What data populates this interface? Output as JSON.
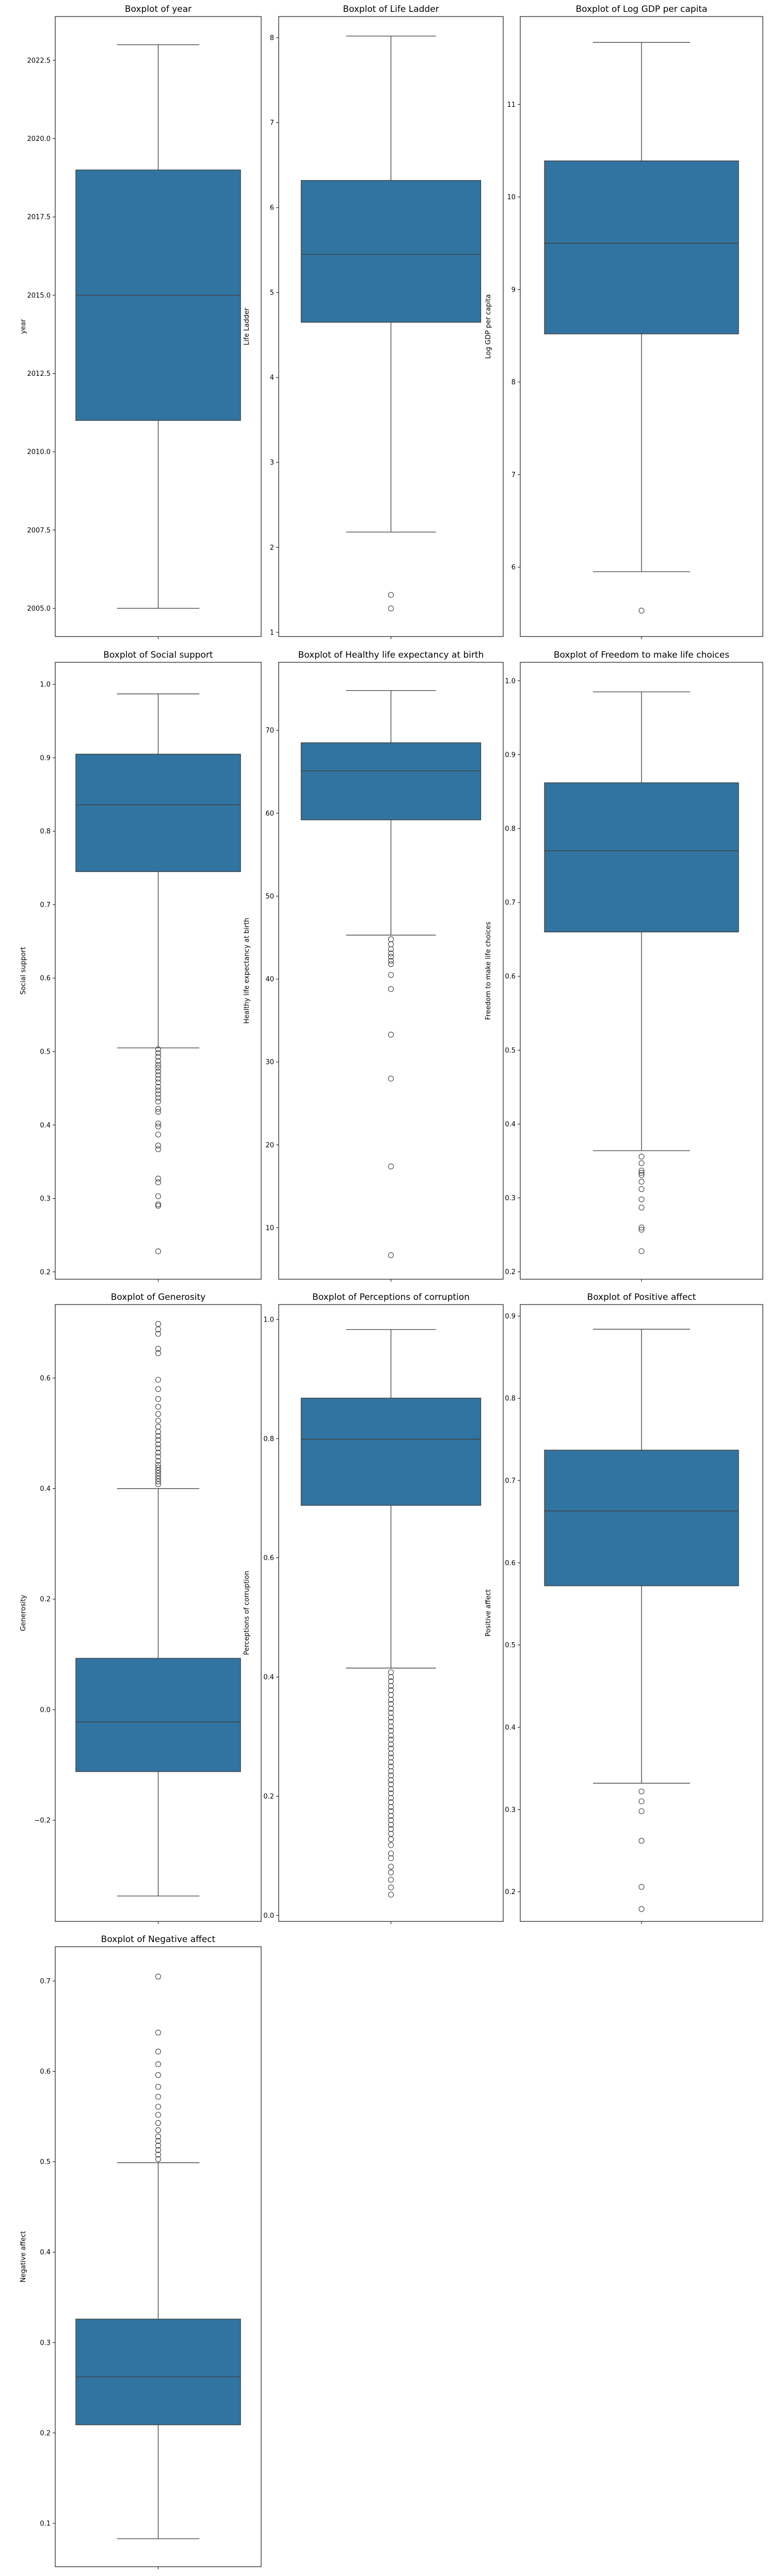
{
  "colors": {
    "box_fill": "#3274a1",
    "line": "#3d3d3d",
    "axis": "#000000",
    "outlier_edge": "#3d3d3d"
  },
  "chart_data": [
    {
      "type": "box",
      "title": "Boxplot of year",
      "ylabel": "year",
      "ylim": [
        2004.1,
        2023.9
      ],
      "ticks": [
        2005.0,
        2007.5,
        2010.0,
        2012.5,
        2015.0,
        2017.5,
        2020.0,
        2022.5
      ],
      "tick_labels": [
        "2005.0",
        "2007.5",
        "2010.0",
        "2012.5",
        "2015.0",
        "2017.5",
        "2020.0",
        "2022.5"
      ],
      "stats": {
        "whisker_low": 2005,
        "q1": 2011,
        "median": 2015,
        "q3": 2019,
        "whisker_high": 2023
      },
      "outliers": []
    },
    {
      "type": "box",
      "title": "Boxplot of Life Ladder",
      "ylabel": "Life Ladder",
      "ylim": [
        0.95,
        8.25
      ],
      "ticks": [
        1,
        2,
        3,
        4,
        5,
        6,
        7,
        8
      ],
      "tick_labels": [
        "1",
        "2",
        "3",
        "4",
        "5",
        "6",
        "7",
        "8"
      ],
      "stats": {
        "whisker_low": 2.18,
        "q1": 4.65,
        "median": 5.45,
        "q3": 6.32,
        "whisker_high": 8.02
      },
      "outliers": [
        1.44,
        1.28
      ]
    },
    {
      "type": "box",
      "title": "Boxplot of Log GDP per capita",
      "ylabel": "Log GDP per capita",
      "ylim": [
        5.25,
        11.95
      ],
      "ticks": [
        6,
        7,
        8,
        9,
        10,
        11
      ],
      "tick_labels": [
        "6",
        "7",
        "8",
        "9",
        "10",
        "11"
      ],
      "stats": {
        "whisker_low": 5.95,
        "q1": 8.52,
        "median": 9.5,
        "q3": 10.39,
        "whisker_high": 11.67
      },
      "outliers": [
        5.53
      ]
    },
    {
      "type": "box",
      "title": "Boxplot of Social support",
      "ylabel": "Social support",
      "ylim": [
        0.19,
        1.03
      ],
      "ticks": [
        0.2,
        0.3,
        0.4,
        0.5,
        0.6,
        0.7,
        0.8,
        0.9,
        1.0
      ],
      "tick_labels": [
        "0.2",
        "0.3",
        "0.4",
        "0.5",
        "0.6",
        "0.7",
        "0.8",
        "0.9",
        "1.0"
      ],
      "stats": {
        "whisker_low": 0.505,
        "q1": 0.745,
        "median": 0.836,
        "q3": 0.905,
        "whisker_high": 0.987
      },
      "outliers": [
        0.503,
        0.498,
        0.493,
        0.487,
        0.482,
        0.478,
        0.473,
        0.468,
        0.463,
        0.458,
        0.452,
        0.447,
        0.442,
        0.437,
        0.432,
        0.422,
        0.418,
        0.402,
        0.398,
        0.387,
        0.372,
        0.367,
        0.327,
        0.322,
        0.303,
        0.292,
        0.29,
        0.228
      ]
    },
    {
      "type": "box",
      "title": "Boxplot of Healthy life expectancy at birth",
      "ylabel": "Healthy life expectancy at birth",
      "ylim": [
        3.8,
        78.2
      ],
      "ticks": [
        10,
        20,
        30,
        40,
        50,
        60,
        70
      ],
      "tick_labels": [
        "10",
        "20",
        "30",
        "40",
        "50",
        "60",
        "70"
      ],
      "stats": {
        "whisker_low": 45.3,
        "q1": 59.2,
        "median": 65.1,
        "q3": 68.5,
        "whisker_high": 74.8
      },
      "outliers": [
        44.8,
        44.2,
        43.6,
        43.1,
        42.7,
        42.2,
        41.8,
        40.5,
        38.8,
        33.3,
        28.0,
        17.4,
        6.7
      ]
    },
    {
      "type": "box",
      "title": "Boxplot of Freedom to make life choices",
      "ylabel": "Freedom to make life choices",
      "ylim": [
        0.19,
        1.025
      ],
      "ticks": [
        0.2,
        0.3,
        0.4,
        0.5,
        0.6,
        0.7,
        0.8,
        0.9,
        1.0
      ],
      "tick_labels": [
        "0.2",
        "0.3",
        "0.4",
        "0.5",
        "0.6",
        "0.7",
        "0.8",
        "0.9",
        "1.0"
      ],
      "stats": {
        "whisker_low": 0.364,
        "q1": 0.66,
        "median": 0.77,
        "q3": 0.862,
        "whisker_high": 0.985
      },
      "outliers": [
        0.356,
        0.347,
        0.337,
        0.334,
        0.331,
        0.322,
        0.312,
        0.298,
        0.287,
        0.26,
        0.257,
        0.228
      ]
    },
    {
      "type": "box",
      "title": "Boxplot of Generosity",
      "ylabel": "Generosity",
      "ylim": [
        -0.383,
        0.733
      ],
      "ticks": [
        -0.2,
        0.0,
        0.2,
        0.4,
        0.6
      ],
      "tick_labels": [
        "−0.2",
        "0.0",
        "0.2",
        "0.4",
        "0.6"
      ],
      "stats": {
        "whisker_low": -0.337,
        "q1": -0.112,
        "median": -0.022,
        "q3": 0.093,
        "whisker_high": 0.4
      },
      "outliers": [
        0.408,
        0.413,
        0.418,
        0.423,
        0.428,
        0.433,
        0.438,
        0.443,
        0.45,
        0.458,
        0.465,
        0.473,
        0.48,
        0.488,
        0.495,
        0.503,
        0.512,
        0.523,
        0.535,
        0.548,
        0.562,
        0.58,
        0.597,
        0.645,
        0.653,
        0.68,
        0.688,
        0.698
      ]
    },
    {
      "type": "box",
      "title": "Boxplot of Perceptions of corruption",
      "ylabel": "Perceptions of corruption",
      "ylim": [
        -0.01,
        1.025
      ],
      "ticks": [
        0.0,
        0.2,
        0.4,
        0.6,
        0.8,
        1.0
      ],
      "tick_labels": [
        "0.0",
        "0.2",
        "0.4",
        "0.6",
        "0.8",
        "1.0"
      ],
      "stats": {
        "whisker_low": 0.415,
        "q1": 0.688,
        "median": 0.799,
        "q3": 0.868,
        "whisker_high": 0.983
      },
      "outliers": [
        0.408,
        0.4,
        0.393,
        0.385,
        0.378,
        0.37,
        0.362,
        0.355,
        0.347,
        0.34,
        0.332,
        0.325,
        0.317,
        0.31,
        0.302,
        0.295,
        0.287,
        0.28,
        0.272,
        0.265,
        0.257,
        0.25,
        0.242,
        0.235,
        0.227,
        0.22,
        0.212,
        0.205,
        0.197,
        0.19,
        0.182,
        0.175,
        0.167,
        0.16,
        0.152,
        0.145,
        0.137,
        0.128,
        0.118,
        0.104,
        0.096,
        0.082,
        0.072,
        0.06,
        0.047,
        0.035
      ]
    },
    {
      "type": "box",
      "title": "Boxplot of Positive affect",
      "ylabel": "Positive affect",
      "ylim": [
        0.164,
        0.914
      ],
      "ticks": [
        0.2,
        0.3,
        0.4,
        0.5,
        0.6,
        0.7,
        0.8,
        0.9
      ],
      "tick_labels": [
        "0.2",
        "0.3",
        "0.4",
        "0.5",
        "0.6",
        "0.7",
        "0.8",
        "0.9"
      ],
      "stats": {
        "whisker_low": 0.332,
        "q1": 0.572,
        "median": 0.663,
        "q3": 0.737,
        "whisker_high": 0.884
      },
      "outliers": [
        0.322,
        0.31,
        0.298,
        0.262,
        0.206,
        0.179
      ]
    },
    {
      "type": "box",
      "title": "Boxplot of Negative affect",
      "ylabel": "Negative affect",
      "ylim": [
        0.052,
        0.738
      ],
      "ticks": [
        0.1,
        0.2,
        0.3,
        0.4,
        0.5,
        0.6,
        0.7
      ],
      "tick_labels": [
        "0.1",
        "0.2",
        "0.3",
        "0.4",
        "0.5",
        "0.6",
        "0.7"
      ],
      "stats": {
        "whisker_low": 0.083,
        "q1": 0.209,
        "median": 0.262,
        "q3": 0.326,
        "whisker_high": 0.499
      },
      "outliers": [
        0.503,
        0.508,
        0.513,
        0.518,
        0.523,
        0.528,
        0.535,
        0.543,
        0.552,
        0.561,
        0.572,
        0.583,
        0.596,
        0.608,
        0.622,
        0.643,
        0.705
      ]
    }
  ]
}
